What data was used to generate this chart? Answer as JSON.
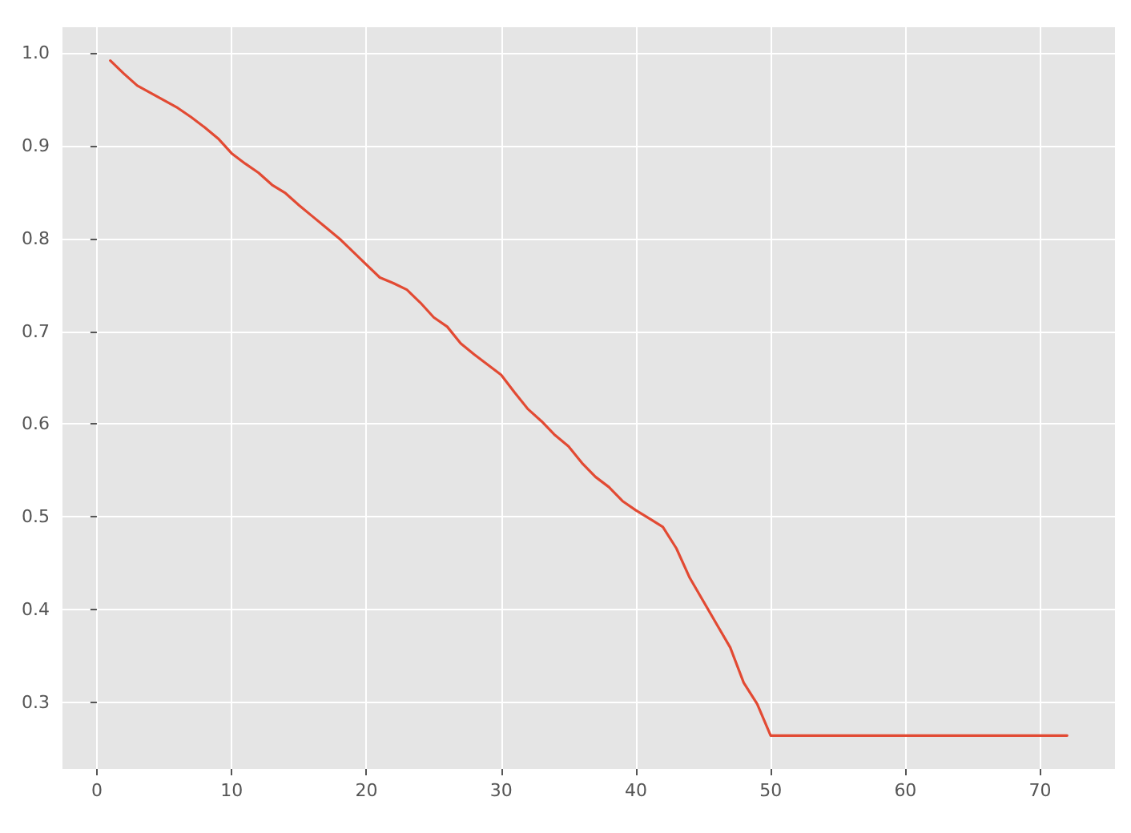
{
  "chart_data": {
    "type": "line",
    "x": [
      1,
      2,
      3,
      4,
      5,
      6,
      7,
      8,
      9,
      10,
      11,
      12,
      13,
      14,
      15,
      16,
      17,
      18,
      19,
      20,
      21,
      22,
      23,
      24,
      25,
      26,
      27,
      28,
      29,
      30,
      31,
      32,
      33,
      34,
      35,
      36,
      37,
      38,
      39,
      40,
      41,
      42,
      43,
      44,
      45,
      46,
      47,
      48,
      49,
      50,
      51,
      52,
      53,
      54,
      55,
      56,
      57,
      58,
      59,
      60,
      61,
      62,
      63,
      64,
      65,
      66,
      67,
      68,
      69,
      70,
      71,
      72
    ],
    "series": [
      {
        "color": "#e24a33",
        "values": [
          0.992,
          0.978,
          0.965,
          0.957,
          0.949,
          0.941,
          0.931,
          0.92,
          0.908,
          0.892,
          0.881,
          0.871,
          0.858,
          0.849,
          0.836,
          0.824,
          0.812,
          0.8,
          0.786,
          0.772,
          0.758,
          0.752,
          0.745,
          0.731,
          0.715,
          0.705,
          0.687,
          0.675,
          0.664,
          0.653,
          0.634,
          0.616,
          0.603,
          0.588,
          0.576,
          0.558,
          0.543,
          0.532,
          0.517,
          0.507,
          0.498,
          0.489,
          0.466,
          0.434,
          0.409,
          0.384,
          0.359,
          0.321,
          0.298,
          0.264,
          0.264,
          0.264,
          0.264,
          0.264,
          0.264,
          0.264,
          0.264,
          0.264,
          0.264,
          0.264,
          0.264,
          0.264,
          0.264,
          0.264,
          0.264,
          0.264,
          0.264,
          0.264,
          0.264,
          0.264,
          0.264,
          0.264
        ]
      }
    ],
    "xlim": [
      -2.55,
      75.55
    ],
    "xticks": [
      0,
      10,
      20,
      30,
      40,
      50,
      60,
      70
    ],
    "ylim": [
      0.228,
      1.028
    ],
    "yticks": [
      0.3,
      0.4,
      0.5,
      0.6,
      0.7,
      0.8,
      0.9,
      {
        "value": 1,
        "label": "1.0"
      }
    ],
    "grid": true,
    "marker": "none",
    "line_style": "solid"
  }
}
